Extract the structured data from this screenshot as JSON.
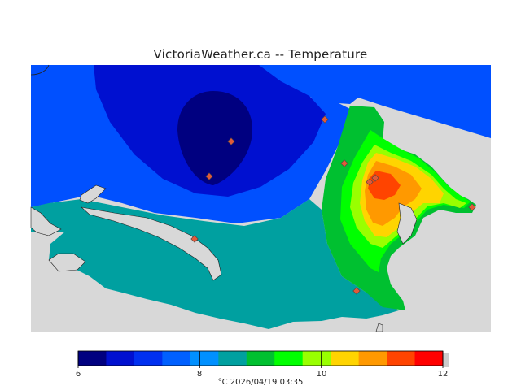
{
  "title": "VictoriaWeather.ca -- Temperature",
  "caption": "°C  2026/04/19 03:35",
  "legend": {
    "ticks": [
      {
        "label": "6",
        "value": 6
      },
      {
        "label": "8",
        "value": 8
      },
      {
        "label": "10",
        "value": 10
      },
      {
        "label": "12",
        "value": 12
      }
    ],
    "min": 6,
    "max": 12,
    "colors": [
      "#000080",
      "#0010d0",
      "#0030f0",
      "#0060ff",
      "#0090ff",
      "#00a0a0",
      "#00c030",
      "#00ff00",
      "#99ff00",
      "#ffd400",
      "#ff9900",
      "#ff4400",
      "#ff0000"
    ]
  },
  "map": {
    "land_color": "#d8d8d8",
    "station_color": "#e05a3a",
    "colors": {
      "very_cold": "#000080",
      "cold": "#0010d0",
      "cool": "#0050ff",
      "mild": "#0088ff",
      "teal": "#00a0a0",
      "green": "#00c030",
      "lime": "#00ff00",
      "yellowgreen": "#99ff00",
      "yellow": "#ffd400",
      "orange": "#ff9900",
      "redorange": "#ff4400"
    }
  }
}
